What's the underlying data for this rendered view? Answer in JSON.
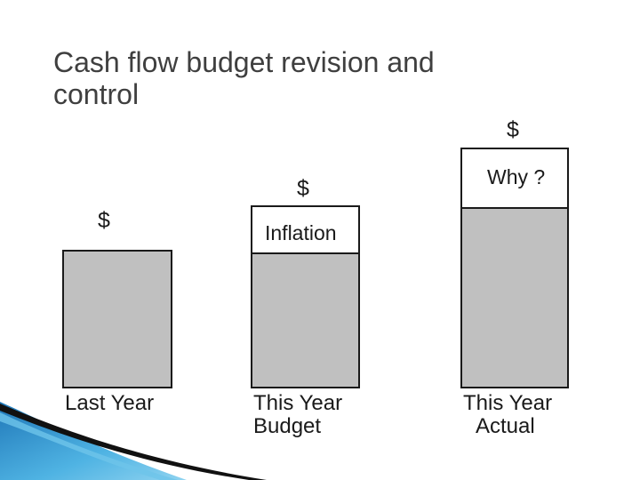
{
  "slide": {
    "title_lines": [
      "Cash flow budget revision and",
      "control"
    ]
  },
  "diagram": {
    "last_year": {
      "currency": "$",
      "label_lines": [
        "Last Year"
      ]
    },
    "this_year_budget": {
      "currency": "$",
      "box_label": "Inflation",
      "label_lines": [
        "This Year",
        "Budget"
      ]
    },
    "this_year_actual": {
      "currency": "$",
      "box_label": "Why ?",
      "label_lines": [
        "This Year",
        "Actual"
      ]
    }
  },
  "colors": {
    "bar_fill": "#c0c0c0",
    "outline": "#1a1a1a",
    "title": "#3f3f3f",
    "accent_blue": "#2f9bd3"
  }
}
